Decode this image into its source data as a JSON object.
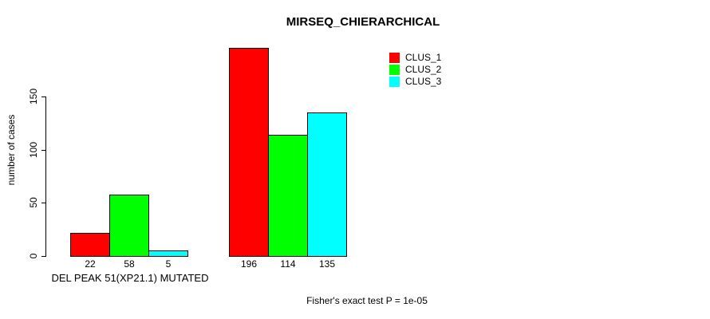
{
  "chart_data": {
    "type": "bar",
    "title": "MIRSEQ_CHIERARCHICAL",
    "ylabel": "number of cases",
    "xlabel": "",
    "categories": [
      "DEL PEAK 51(XP21.1) MUTATED",
      ""
    ],
    "series": [
      {
        "name": "CLUS_1",
        "color": "#ff0000",
        "values": [
          22,
          196
        ]
      },
      {
        "name": "CLUS_2",
        "color": "#00ff00",
        "values": [
          58,
          114
        ]
      },
      {
        "name": "CLUS_3",
        "color": "#00ffff",
        "values": [
          5,
          135
        ]
      }
    ],
    "bar_value_labels": [
      [
        22,
        58,
        5
      ],
      [
        196,
        114,
        135
      ]
    ],
    "yticks": [
      0,
      50,
      100,
      150
    ],
    "ylim": [
      0,
      200
    ],
    "grid": false,
    "legend_position": "top-right",
    "bar_border_color": "#000000",
    "annotation": "Fisher's exact test P = 1e-05"
  }
}
